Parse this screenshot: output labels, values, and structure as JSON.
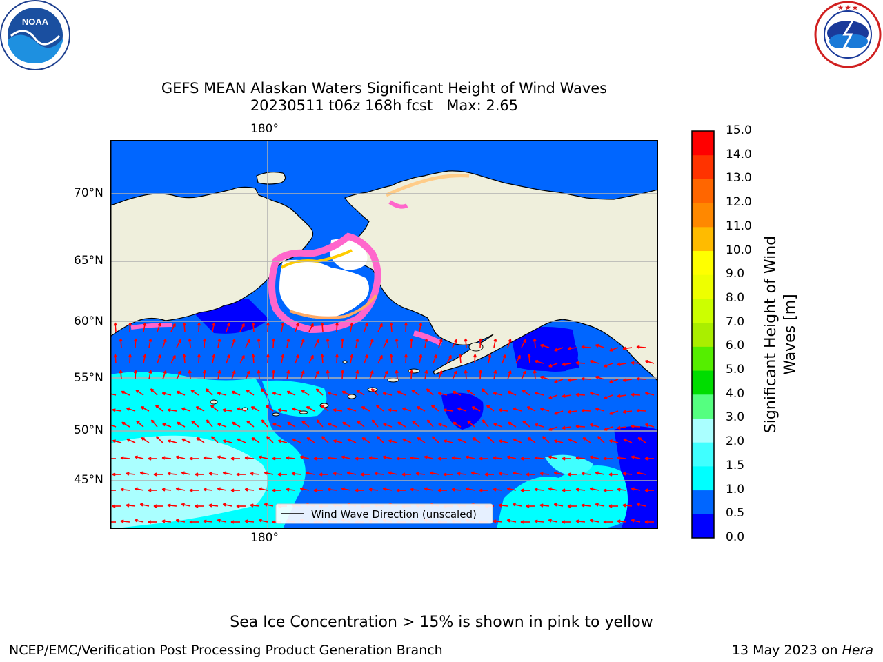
{
  "title": {
    "line1": "GEFS MEAN Alaskan Waters Significant Height of Wind Waves",
    "line2": "20230511 t06z 168h fcst   Max: 2.65"
  },
  "logos": {
    "left": {
      "text": "NOAA",
      "ring_text": "NATIONAL OCEANIC AND ATMOSPHERIC ADMINISTRATION · U.S. DEPARTMENT OF COMMERCE"
    },
    "right": {
      "ring_text": "NATIONAL WEATHER SERVICE"
    }
  },
  "map": {
    "lon_label_top": "180°",
    "lon_label_bottom": "180°",
    "lat_labels": [
      "70°N",
      "65°N",
      "60°N",
      "55°N",
      "50°N",
      "45°N"
    ],
    "legend_label": "Wind Wave Direction (unscaled)",
    "colors": {
      "land": "#efefdc",
      "ocean_low": "#0000ff",
      "ocean_mid": "#0066ff",
      "ocean_high": "#00ffff",
      "ice_pink": "#ff66cc",
      "ice_yellow": "#ffcc00",
      "arrow": "#ff0000",
      "grid": "#b0b0b0"
    }
  },
  "colorbar": {
    "ticks": [
      "15.0",
      "14.0",
      "13.0",
      "12.0",
      "11.0",
      "10.0",
      "9.0",
      "8.0",
      "7.0",
      "6.0",
      "5.0",
      "4.0",
      "3.0",
      "2.0",
      "1.5",
      "1.0",
      "0.5",
      "0.0"
    ],
    "colors_bottom_to_top": [
      "#0000ff",
      "#0066ff",
      "#00ffff",
      "#40ffff",
      "#aaffff",
      "#55ff80",
      "#00dd00",
      "#55ee00",
      "#aaee00",
      "#ccff00",
      "#eeff00",
      "#ffff00",
      "#ffbb00",
      "#ff8800",
      "#ff6600",
      "#ff3300",
      "#ff0000"
    ],
    "label_line1": "Significant Height of Wind",
    "label_line2": "Waves [m]"
  },
  "note": "Sea Ice Concentration > 15% is shown in pink to yellow",
  "footer": {
    "left": "NCEP/EMC/Verification Post Processing Product Generation Branch",
    "date": "13 May 2023 on ",
    "machine": "Hera"
  }
}
